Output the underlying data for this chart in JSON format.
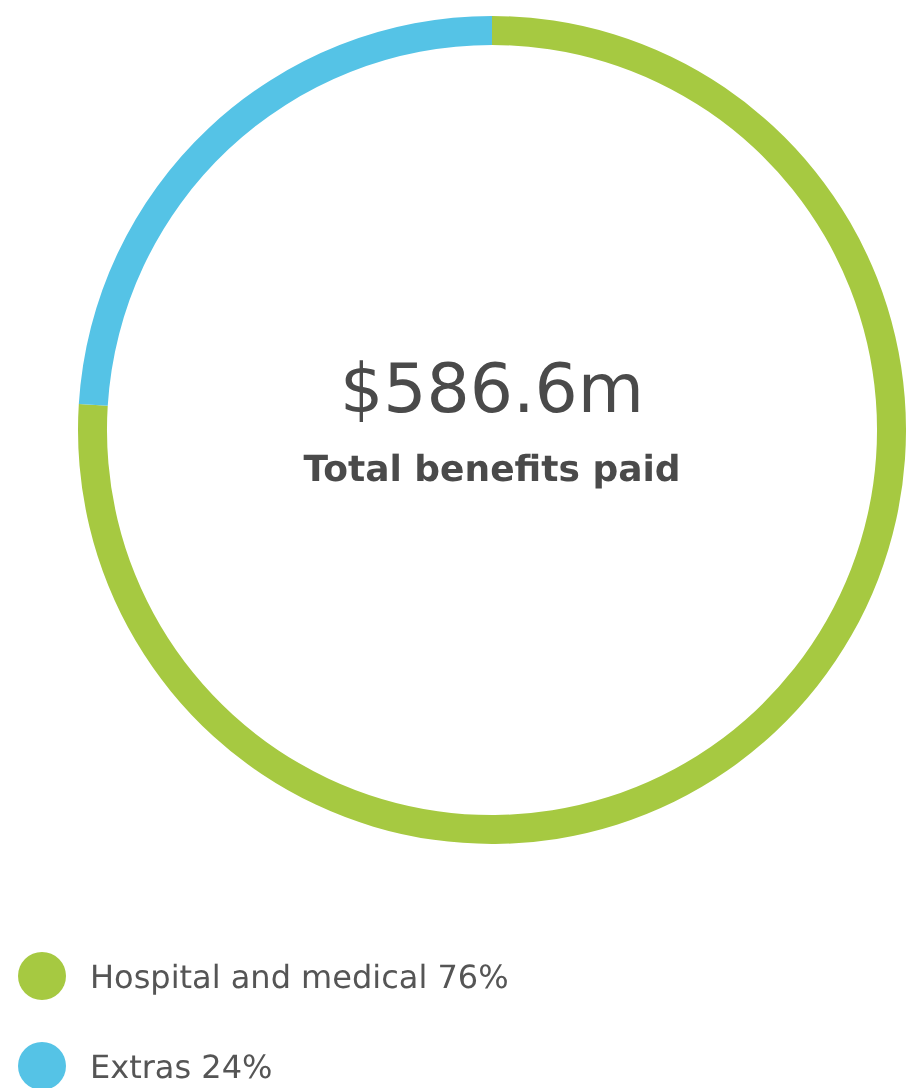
{
  "chart_data": {
    "type": "donut",
    "categories": [
      "Hospital and medical",
      "Extras"
    ],
    "values": [
      76,
      24
    ],
    "value_labels": [
      "76%",
      "24%"
    ],
    "colors": [
      "#a6c941",
      "#55c3e6"
    ],
    "annotations": [
      "$586.6m",
      "Total benefits paid"
    ],
    "legend": "bottom left"
  }
}
